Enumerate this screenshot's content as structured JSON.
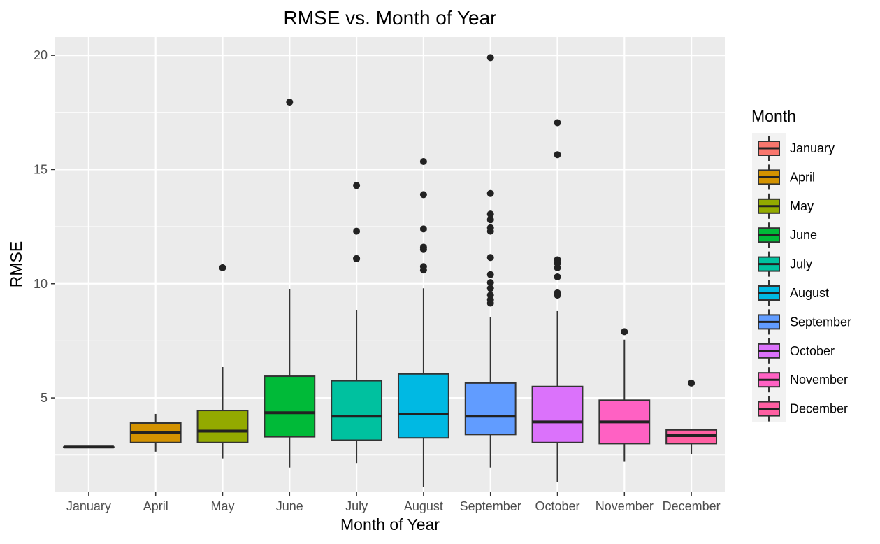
{
  "chart_data": {
    "type": "boxplot",
    "title": "RMSE vs. Month of Year",
    "xlabel": "Month of Year",
    "ylabel": "RMSE",
    "ylim": [
      0.9,
      20.8
    ],
    "y_ticks": [
      5,
      10,
      15,
      20
    ],
    "grid": true,
    "legend": {
      "title": "Month",
      "position": "right"
    },
    "categories": [
      "January",
      "April",
      "May",
      "June",
      "July",
      "August",
      "September",
      "October",
      "November",
      "December"
    ],
    "series": [
      {
        "name": "January",
        "color": "#F8766D",
        "whisker_low": 2.85,
        "q1": 2.85,
        "median": 2.85,
        "q3": 2.85,
        "whisker_high": 2.85,
        "outliers": []
      },
      {
        "name": "April",
        "color": "#D39200",
        "whisker_low": 2.65,
        "q1": 3.05,
        "median": 3.5,
        "q3": 3.9,
        "whisker_high": 4.3,
        "outliers": []
      },
      {
        "name": "May",
        "color": "#93AA00",
        "whisker_low": 2.35,
        "q1": 3.05,
        "median": 3.55,
        "q3": 4.45,
        "whisker_high": 6.35,
        "outliers": [
          10.7
        ]
      },
      {
        "name": "June",
        "color": "#00BA38",
        "whisker_low": 1.95,
        "q1": 3.3,
        "median": 4.35,
        "q3": 5.95,
        "whisker_high": 9.75,
        "outliers": [
          17.95
        ]
      },
      {
        "name": "July",
        "color": "#00C19F",
        "whisker_low": 2.15,
        "q1": 3.15,
        "median": 4.2,
        "q3": 5.75,
        "whisker_high": 8.85,
        "outliers": [
          11.1,
          11.1,
          12.3,
          14.3
        ]
      },
      {
        "name": "August",
        "color": "#00B9E3",
        "whisker_low": 1.1,
        "q1": 3.25,
        "median": 4.3,
        "q3": 6.05,
        "whisker_high": 9.8,
        "outliers": [
          10.6,
          10.75,
          11.5,
          11.6,
          12.4,
          13.9,
          15.35
        ]
      },
      {
        "name": "September",
        "color": "#619CFF",
        "whisker_low": 1.95,
        "q1": 3.4,
        "median": 4.2,
        "q3": 5.65,
        "whisker_high": 8.55,
        "outliers": [
          9.15,
          9.3,
          9.5,
          9.8,
          10.05,
          10.4,
          11.15,
          12.3,
          12.45,
          12.8,
          13.05,
          13.95,
          19.9
        ]
      },
      {
        "name": "October",
        "color": "#DB72FB",
        "whisker_low": 1.3,
        "q1": 3.05,
        "median": 3.95,
        "q3": 5.5,
        "whisker_high": 8.8,
        "outliers": [
          9.5,
          9.6,
          10.3,
          10.7,
          10.9,
          11.05,
          15.65,
          17.05
        ]
      },
      {
        "name": "November",
        "color": "#FF61C3",
        "whisker_low": 2.2,
        "q1": 3.0,
        "median": 3.95,
        "q3": 4.9,
        "whisker_high": 7.55,
        "outliers": [
          7.9
        ]
      },
      {
        "name": "December",
        "color": "#FF5FA2",
        "whisker_low": 2.55,
        "q1": 3.0,
        "median": 3.35,
        "q3": 3.6,
        "whisker_high": 3.65,
        "outliers": [
          5.65
        ]
      }
    ]
  }
}
